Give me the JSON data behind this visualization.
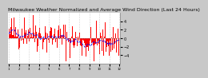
{
  "title": "Milwaukee Weather Normalized and Average Wind Direction (Last 24 Hours)",
  "bg_color": "#c8c8c8",
  "plot_bg_color": "#ffffff",
  "bar_color": "#ff0000",
  "line_color": "#0000ff",
  "line_style": "--",
  "n_points": 144,
  "ylim": [
    -6,
    6
  ],
  "title_fontsize": 4.5,
  "tick_fontsize": 3.5,
  "grid_color": "#aaaaaa"
}
